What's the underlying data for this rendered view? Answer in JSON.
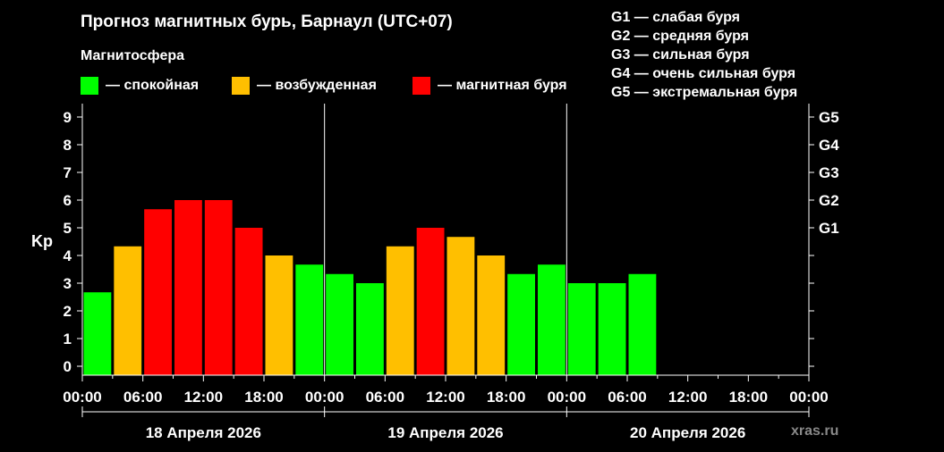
{
  "title": "Прогноз магнитных бурь, Барнаул (UTC+07)",
  "subtitle": "Магнитосфера",
  "legend": [
    {
      "label": "— спокойная",
      "color": "#00ff00"
    },
    {
      "label": "— возбужденная",
      "color": "#ffbf00"
    },
    {
      "label": "— магнитная буря",
      "color": "#ff0000"
    }
  ],
  "g_scale": [
    "G1 — слабая буря",
    "G2 — средняя буря",
    "G3 — сильная буря",
    "G4 — очень сильная буря",
    "G5 — экстремальная буря"
  ],
  "watermark": "xras.ru",
  "chart_data": {
    "type": "bar",
    "ylabel": "Kp",
    "ylim": [
      0,
      9
    ],
    "yticks": [
      "0",
      "1",
      "2",
      "3",
      "4",
      "5",
      "6",
      "7",
      "8",
      "9"
    ],
    "right_ticks": [
      {
        "label": "G1",
        "kp": 5
      },
      {
        "label": "G2",
        "kp": 6
      },
      {
        "label": "G3",
        "kp": 7
      },
      {
        "label": "G4",
        "kp": 8
      },
      {
        "label": "G5",
        "kp": 9
      }
    ],
    "xtick_labels": [
      "00:00",
      "06:00",
      "12:00",
      "18:00",
      "00:00",
      "06:00",
      "12:00",
      "18:00",
      "00:00",
      "06:00",
      "12:00",
      "18:00",
      "00:00"
    ],
    "days": [
      "18 Апреля 2026",
      "19 Апреля 2026",
      "20 Апреля 2026"
    ],
    "bar_hours": 3,
    "total_hours": 72,
    "bars": [
      {
        "start_hour": 0,
        "kp": 2.67,
        "color": "#00ff00"
      },
      {
        "start_hour": 3,
        "kp": 4.33,
        "color": "#ffbf00"
      },
      {
        "start_hour": 6,
        "kp": 5.67,
        "color": "#ff0000"
      },
      {
        "start_hour": 9,
        "kp": 6.0,
        "color": "#ff0000"
      },
      {
        "start_hour": 12,
        "kp": 6.0,
        "color": "#ff0000"
      },
      {
        "start_hour": 15,
        "kp": 5.0,
        "color": "#ff0000"
      },
      {
        "start_hour": 18,
        "kp": 4.0,
        "color": "#ffbf00"
      },
      {
        "start_hour": 21,
        "kp": 3.67,
        "color": "#00ff00"
      },
      {
        "start_hour": 24,
        "kp": 3.33,
        "color": "#00ff00"
      },
      {
        "start_hour": 27,
        "kp": 3.0,
        "color": "#00ff00"
      },
      {
        "start_hour": 30,
        "kp": 4.33,
        "color": "#ffbf00"
      },
      {
        "start_hour": 33,
        "kp": 5.0,
        "color": "#ff0000"
      },
      {
        "start_hour": 36,
        "kp": 4.67,
        "color": "#ffbf00"
      },
      {
        "start_hour": 39,
        "kp": 4.0,
        "color": "#ffbf00"
      },
      {
        "start_hour": 42,
        "kp": 3.33,
        "color": "#00ff00"
      },
      {
        "start_hour": 45,
        "kp": 3.67,
        "color": "#00ff00"
      },
      {
        "start_hour": 48,
        "kp": 3.0,
        "color": "#00ff00"
      },
      {
        "start_hour": 51,
        "kp": 3.0,
        "color": "#00ff00"
      },
      {
        "start_hour": 54,
        "kp": 3.33,
        "color": "#00ff00"
      }
    ]
  }
}
